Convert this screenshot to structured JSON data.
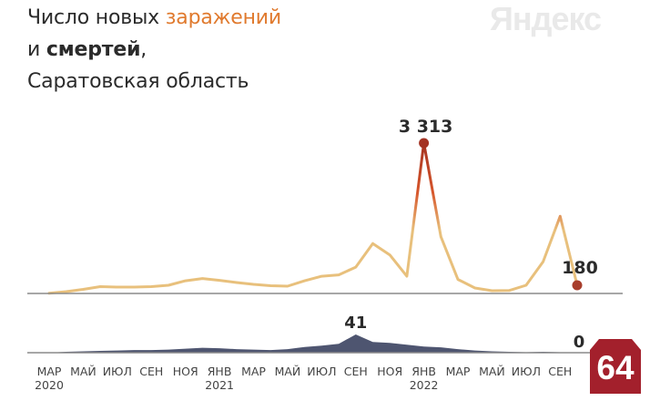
{
  "title": {
    "prefix": "Число новых ",
    "infections": "заражений",
    "and": "и ",
    "deaths": "смертей",
    "comma": ",",
    "region": "Саратовская область"
  },
  "watermark": "Яндекс",
  "badge": "64",
  "colors": {
    "infections_line": "#e8c07c",
    "peak_gradient_top": "#9e2f20",
    "peak_gradient_mid": "#d6552b",
    "deaths_area": "#4e5570",
    "peak_marker": "#a33323",
    "last_marker": "#a83e2c",
    "axis": "#8a8a8a",
    "badge": "#a3202c"
  },
  "chart_data": [
    {
      "type": "line",
      "name": "infections",
      "x_dates": [
        "2020-03",
        "2020-04",
        "2020-05",
        "2020-06",
        "2020-07",
        "2020-08",
        "2020-09",
        "2020-10",
        "2020-11",
        "2020-12",
        "2021-01",
        "2021-02",
        "2021-03",
        "2021-04",
        "2021-05",
        "2021-06",
        "2021-07",
        "2021-08",
        "2021-09",
        "2021-10",
        "2021-11",
        "2021-12",
        "2022-01",
        "2022-02",
        "2022-03",
        "2022-04",
        "2022-05",
        "2022-06",
        "2022-07",
        "2022-08",
        "2022-09",
        "2022-10"
      ],
      "values": [
        5,
        40,
        90,
        150,
        140,
        140,
        150,
        180,
        280,
        330,
        290,
        240,
        200,
        170,
        160,
        280,
        380,
        410,
        580,
        1100,
        850,
        380,
        3313,
        1250,
        310,
        120,
        60,
        65,
        180,
        700,
        1700,
        180
      ],
      "peak_label": "3 313",
      "last_label": "180",
      "ylim": [
        0,
        3313
      ]
    },
    {
      "type": "area",
      "name": "deaths",
      "x_dates": [
        "2020-03",
        "2020-04",
        "2020-05",
        "2020-06",
        "2020-07",
        "2020-08",
        "2020-09",
        "2020-10",
        "2020-11",
        "2020-12",
        "2021-01",
        "2021-02",
        "2021-03",
        "2021-04",
        "2021-05",
        "2021-06",
        "2021-07",
        "2021-08",
        "2021-09",
        "2021-10",
        "2021-11",
        "2021-12",
        "2022-01",
        "2022-02",
        "2022-03",
        "2022-04",
        "2022-05",
        "2022-06",
        "2022-07",
        "2022-08",
        "2022-09",
        "2022-10"
      ],
      "values": [
        0,
        2,
        3,
        4,
        5,
        6,
        6,
        7,
        9,
        11,
        10,
        8,
        7,
        6,
        8,
        13,
        16,
        20,
        41,
        24,
        22,
        18,
        14,
        12,
        8,
        5,
        3,
        2,
        1,
        2,
        1,
        0
      ],
      "peak_label": "41",
      "last_label": "0",
      "ylim": [
        0,
        41
      ]
    }
  ],
  "x_axis": {
    "ticks": [
      {
        "label": "МАР",
        "year": "2020"
      },
      {
        "label": "МАЙ",
        "year": ""
      },
      {
        "label": "ИЮЛ",
        "year": ""
      },
      {
        "label": "СЕН",
        "year": ""
      },
      {
        "label": "НОЯ",
        "year": ""
      },
      {
        "label": "ЯНВ",
        "year": "2021"
      },
      {
        "label": "МАР",
        "year": ""
      },
      {
        "label": "МАЙ",
        "year": ""
      },
      {
        "label": "ИЮЛ",
        "year": ""
      },
      {
        "label": "СЕН",
        "year": ""
      },
      {
        "label": "НОЯ",
        "year": ""
      },
      {
        "label": "ЯНВ",
        "year": "2022"
      },
      {
        "label": "МАР",
        "year": ""
      },
      {
        "label": "МАЙ",
        "year": ""
      },
      {
        "label": "ИЮЛ",
        "year": ""
      },
      {
        "label": "СЕН",
        "year": ""
      }
    ]
  }
}
